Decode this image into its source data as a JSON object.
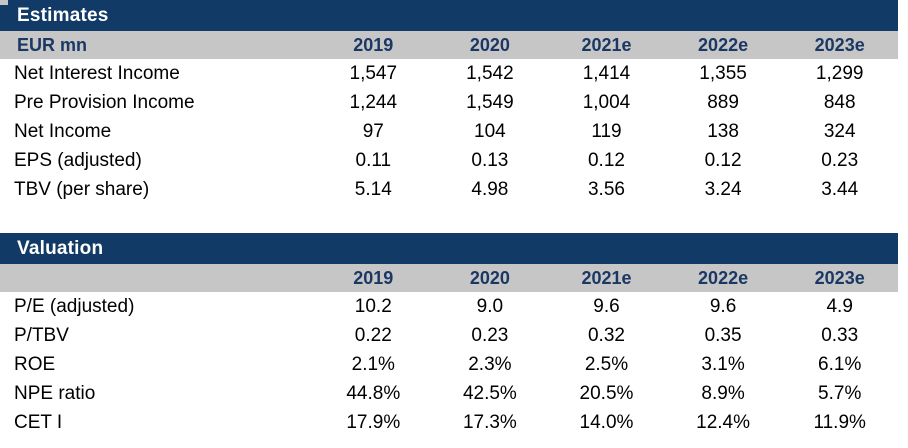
{
  "colors": {
    "navy_bar": "#123A66",
    "title_text": "#FFFFFF",
    "header_row_bg": "#C6C6C6",
    "header_text": "#1B3864",
    "body_text": "#000000",
    "page_bg": "#FFFFFF"
  },
  "tables": [
    {
      "title": "Estimates",
      "corner_label": "EUR mn",
      "columns": [
        "2019",
        "2020",
        "2021e",
        "2022e",
        "2023e"
      ],
      "rows": [
        {
          "label": "Net Interest Income",
          "values": [
            "1,547",
            "1,542",
            "1,414",
            "1,355",
            "1,299"
          ]
        },
        {
          "label": "Pre Provision Income",
          "values": [
            "1,244",
            "1,549",
            "1,004",
            "889",
            "848"
          ]
        },
        {
          "label": "Net Income",
          "values": [
            "97",
            "104",
            "119",
            "138",
            "324"
          ]
        },
        {
          "label": "EPS (adjusted)",
          "values": [
            "0.11",
            "0.13",
            "0.12",
            "0.12",
            "0.23"
          ]
        },
        {
          "label": "TBV (per share)",
          "values": [
            "5.14",
            "4.98",
            "3.56",
            "3.24",
            "3.44"
          ]
        }
      ]
    },
    {
      "title": "Valuation",
      "corner_label": "",
      "columns": [
        "2019",
        "2020",
        "2021e",
        "2022e",
        "2023e"
      ],
      "rows": [
        {
          "label": "P/E (adjusted)",
          "values": [
            "10.2",
            "9.0",
            "9.6",
            "9.6",
            "4.9"
          ]
        },
        {
          "label": "P/TBV",
          "values": [
            "0.22",
            "0.23",
            "0.32",
            "0.35",
            "0.33"
          ]
        },
        {
          "label": "ROE",
          "values": [
            "2.1%",
            "2.3%",
            "2.5%",
            "3.1%",
            "6.1%"
          ]
        },
        {
          "label": "NPE ratio",
          "values": [
            "44.8%",
            "42.5%",
            "20.5%",
            "8.9%",
            "5.7%"
          ]
        },
        {
          "label": "CET I",
          "values": [
            "17.9%",
            "17.3%",
            "14.0%",
            "12.4%",
            "11.9%"
          ]
        }
      ]
    }
  ]
}
